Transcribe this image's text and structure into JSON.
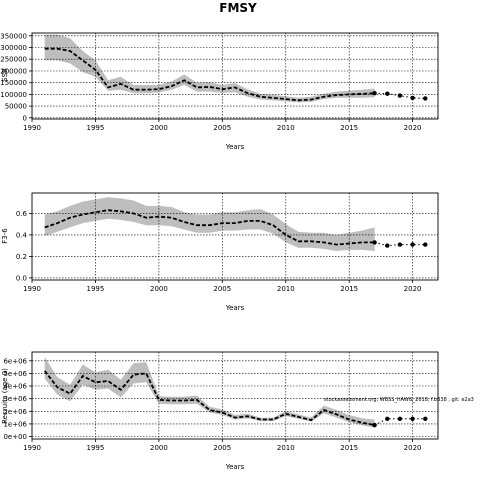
{
  "figure": {
    "title": "FMSY",
    "note": "stockassessment.org, WBSS_HAWG_2018, f.b338 , git: e2a3"
  },
  "chart_data": [
    {
      "type": "line",
      "title": "",
      "xlabel": "Years",
      "ylabel": "SSB",
      "xlim": [
        1990,
        2022
      ],
      "ylim": [
        -5000,
        362000
      ],
      "xticks": [
        1990,
        1995,
        2000,
        2005,
        2010,
        2015,
        2020
      ],
      "yticks": [
        0,
        50000,
        100000,
        150000,
        200000,
        250000,
        300000,
        350000
      ],
      "ytick_labels": [
        "0",
        "50000",
        "100000",
        "150000",
        "200000",
        "250000",
        "300000",
        "350000"
      ],
      "vgrid": [
        1995,
        2000,
        2005,
        2010,
        2015,
        2020
      ],
      "grid": true,
      "band_color": "#bebebe",
      "line_color": "#000000",
      "x": [
        1991,
        1992,
        1993,
        1994,
        1995,
        1996,
        1997,
        1998,
        1999,
        2000,
        2001,
        2002,
        2003,
        2004,
        2005,
        2006,
        2007,
        2008,
        2009,
        2010,
        2011,
        2012,
        2013,
        2014,
        2015,
        2016,
        2017
      ],
      "estimate": [
        295000,
        295000,
        285000,
        245000,
        205000,
        130000,
        145000,
        120000,
        120000,
        122000,
        135000,
        160000,
        130000,
        132000,
        122000,
        130000,
        105000,
        90000,
        85000,
        80000,
        75000,
        78000,
        90000,
        97000,
        100000,
        102000,
        105000
      ],
      "lower": [
        245000,
        245000,
        232000,
        195000,
        175000,
        115000,
        120000,
        105000,
        105000,
        108000,
        120000,
        140000,
        112000,
        112000,
        106000,
        110000,
        90000,
        78000,
        75000,
        70000,
        66000,
        68000,
        80000,
        85000,
        86000,
        86000,
        88000
      ],
      "upper": [
        355000,
        355000,
        340000,
        285000,
        245000,
        160000,
        175000,
        140000,
        140000,
        140000,
        155000,
        185000,
        150000,
        152000,
        140000,
        148000,
        122000,
        102000,
        98000,
        92000,
        86000,
        90000,
        102000,
        112000,
        116000,
        120000,
        125000
      ],
      "forecast_x": [
        2017,
        2018,
        2019,
        2020,
        2021
      ],
      "forecast": [
        105000,
        103000,
        95000,
        85000,
        83000
      ]
    },
    {
      "type": "line",
      "title": "",
      "xlabel": "Years",
      "ylabel": "F3-6",
      "xlim": [
        1990,
        2022
      ],
      "ylim": [
        -0.02,
        0.79
      ],
      "xticks": [
        1990,
        1995,
        2000,
        2005,
        2010,
        2015,
        2020
      ],
      "yticks": [
        0,
        0.2,
        0.4,
        0.6
      ],
      "ytick_labels": [
        "0.0",
        "0.2",
        "0.4",
        "0.6"
      ],
      "vgrid": [
        1995,
        2000,
        2005,
        2010,
        2015,
        2020
      ],
      "grid": true,
      "band_color": "#bebebe",
      "line_color": "#000000",
      "x": [
        1991,
        1992,
        1993,
        1994,
        1995,
        1996,
        1997,
        1998,
        1999,
        2000,
        2001,
        2002,
        2003,
        2004,
        2005,
        2006,
        2007,
        2008,
        2009,
        2010,
        2011,
        2012,
        2013,
        2014,
        2015,
        2016,
        2017
      ],
      "estimate": [
        0.47,
        0.51,
        0.56,
        0.59,
        0.61,
        0.63,
        0.62,
        0.6,
        0.56,
        0.57,
        0.56,
        0.52,
        0.49,
        0.49,
        0.51,
        0.51,
        0.53,
        0.53,
        0.49,
        0.4,
        0.34,
        0.34,
        0.33,
        0.31,
        0.32,
        0.33,
        0.33
      ],
      "lower": [
        0.39,
        0.43,
        0.47,
        0.51,
        0.53,
        0.55,
        0.54,
        0.52,
        0.49,
        0.49,
        0.48,
        0.45,
        0.42,
        0.42,
        0.44,
        0.44,
        0.45,
        0.45,
        0.41,
        0.33,
        0.28,
        0.28,
        0.27,
        0.25,
        0.26,
        0.26,
        0.25
      ],
      "upper": [
        0.59,
        0.62,
        0.67,
        0.71,
        0.73,
        0.75,
        0.74,
        0.72,
        0.67,
        0.67,
        0.66,
        0.61,
        0.59,
        0.59,
        0.61,
        0.61,
        0.63,
        0.64,
        0.59,
        0.5,
        0.43,
        0.42,
        0.42,
        0.4,
        0.42,
        0.44,
        0.47
      ],
      "forecast_x": [
        2017,
        2018,
        2019,
        2020,
        2021
      ],
      "forecast": [
        0.33,
        0.3,
        0.31,
        0.31,
        0.31
      ]
    },
    {
      "type": "line",
      "title": "",
      "xlabel": "Years",
      "ylabel": "Recruits (age 0)",
      "xlim": [
        1990,
        2022
      ],
      "ylim": [
        -200000,
        6700000
      ],
      "xticks": [
        1990,
        1995,
        2000,
        2005,
        2010,
        2015,
        2020
      ],
      "yticks": [
        0,
        1000000,
        2000000,
        3000000,
        4000000,
        5000000,
        6000000
      ],
      "ytick_labels": [
        "0e+00",
        "1e+06",
        "2e+06",
        "3e+06",
        "4e+06",
        "5e+06",
        "6e+06"
      ],
      "vgrid": [
        1995,
        2000,
        2005,
        2010,
        2015,
        2020
      ],
      "grid": true,
      "band_color": "#bebebe",
      "line_color": "#000000",
      "x": [
        1991,
        1992,
        1993,
        1994,
        1995,
        1996,
        1997,
        1998,
        1999,
        2000,
        2001,
        2002,
        2003,
        2004,
        2005,
        2006,
        2007,
        2008,
        2009,
        2010,
        2011,
        2012,
        2013,
        2014,
        2015,
        2016,
        2017
      ],
      "estimate": [
        5200000,
        3900000,
        3400000,
        4800000,
        4300000,
        4400000,
        3700000,
        4900000,
        5000000,
        2900000,
        2850000,
        2850000,
        2900000,
        2100000,
        1900000,
        1500000,
        1600000,
        1350000,
        1350000,
        1800000,
        1550000,
        1300000,
        2100000,
        1750000,
        1350000,
        1100000,
        900000
      ],
      "lower": [
        4600000,
        3300000,
        2800000,
        4100000,
        3700000,
        3800000,
        3100000,
        4200000,
        4300000,
        2600000,
        2550000,
        2550000,
        2600000,
        1900000,
        1700000,
        1350000,
        1450000,
        1220000,
        1220000,
        1620000,
        1400000,
        1170000,
        1850000,
        1500000,
        1130000,
        900000,
        700000
      ],
      "upper": [
        6300000,
        4700000,
        4100000,
        5700000,
        5100000,
        5300000,
        4500000,
        5800000,
        5900000,
        3200000,
        3150000,
        3150000,
        3250000,
        2350000,
        2150000,
        1700000,
        1800000,
        1500000,
        1500000,
        2000000,
        1750000,
        1500000,
        2450000,
        2100000,
        1700000,
        1450000,
        1350000
      ],
      "forecast_x": [
        2017,
        2018,
        2019,
        2020,
        2021
      ],
      "forecast": [
        900000,
        1400000,
        1400000,
        1400000,
        1400000
      ]
    }
  ]
}
